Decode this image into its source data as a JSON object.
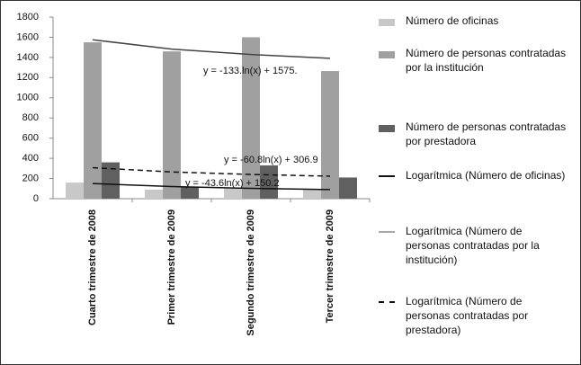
{
  "chart_data": {
    "type": "bar",
    "categories": [
      "Cuarto trimestre de 2008",
      "Primer trimestre de 2009",
      "Segundo trimestre de 2009",
      "Tercer trimestre de 2009"
    ],
    "series": [
      {
        "name": "Número de oficinas",
        "color": "#c8c8c8",
        "values": [
          160,
          90,
          100,
          90
        ]
      },
      {
        "name": "Número de personas contratadas por la institución",
        "color": "#a0a0a0",
        "values": [
          1550,
          1460,
          1600,
          1265
        ]
      },
      {
        "name": "Número de personas contratadas por prestadora",
        "color": "#606060",
        "values": [
          360,
          120,
          330,
          210
        ]
      }
    ],
    "trendlines": [
      {
        "name": "Logarítmica (Número de oficinas)",
        "color": "#111111",
        "dash": false,
        "values": [
          150,
          120,
          102,
          90
        ],
        "equation": "y = -43.6ln(x) + 150.2"
      },
      {
        "name": "Logarítmica (Número de personas contratadas por la institución)",
        "color": "#444444",
        "legend_color": "#a8a8a8",
        "dash": false,
        "values": [
          1575,
          1483,
          1429,
          1391
        ],
        "equation": "y = -133.ln(x) + 1575."
      },
      {
        "name": "Logarítmica (Número de personas contratadas por prestadora)",
        "color": "#111111",
        "dash": true,
        "values": [
          307,
          265,
          240,
          223
        ],
        "equation": "y = -60.8ln(x) + 306.9"
      }
    ],
    "ylim": [
      0,
      1800
    ],
    "yticks": [
      0,
      200,
      400,
      600,
      800,
      1000,
      1200,
      1400,
      1600,
      1800
    ]
  }
}
